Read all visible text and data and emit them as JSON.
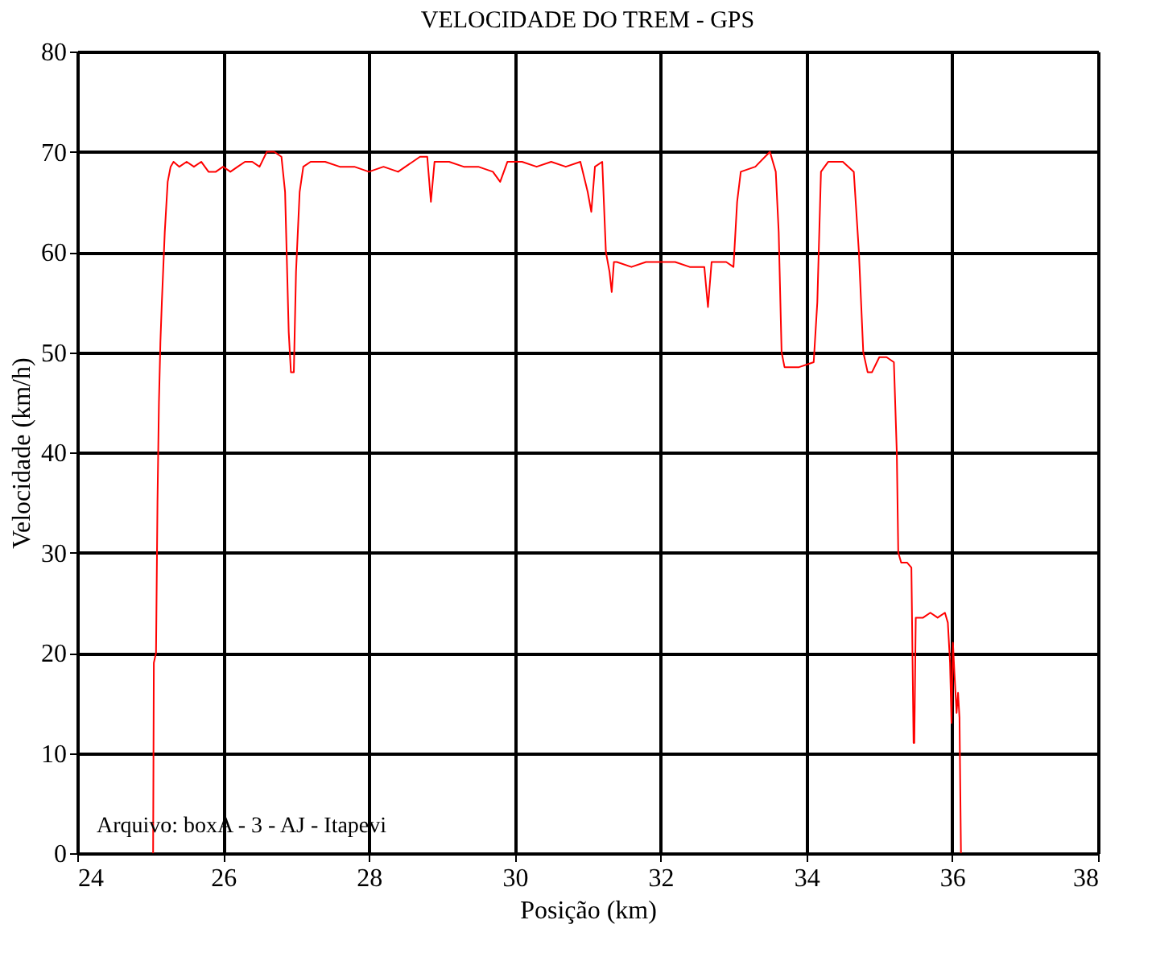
{
  "chart_data": {
    "type": "line",
    "title": "VELOCIDADE DO TREM - GPS",
    "xlabel": "Posição (km)",
    "ylabel": "Velocidade (km/h)",
    "xlim": [
      24,
      38
    ],
    "ylim": [
      0,
      80
    ],
    "xticks": [
      24,
      26,
      28,
      30,
      32,
      34,
      36,
      38
    ],
    "yticks": [
      0,
      10,
      20,
      30,
      40,
      50,
      60,
      70,
      80
    ],
    "grid": true,
    "line_style": "solid",
    "marker": "none",
    "annotations": [
      "Arquivo: boxA - 3 - AJ - Itapevi"
    ],
    "series": [
      {
        "color": "#ff0000",
        "x": [
          25.04,
          25.05,
          25.08,
          25.1,
          25.12,
          25.14,
          25.16,
          25.2,
          25.24,
          25.28,
          25.32,
          25.4,
          25.5,
          25.6,
          25.7,
          25.8,
          25.9,
          26.0,
          26.1,
          26.2,
          26.3,
          26.4,
          26.5,
          26.6,
          26.7,
          26.8,
          26.85,
          26.9,
          26.93,
          26.97,
          27.0,
          27.05,
          27.1,
          27.2,
          27.4,
          27.6,
          27.8,
          28.0,
          28.2,
          28.4,
          28.6,
          28.7,
          28.8,
          28.85,
          28.9,
          29.1,
          29.3,
          29.5,
          29.7,
          29.8,
          29.9,
          30.1,
          30.3,
          30.5,
          30.7,
          30.9,
          31.0,
          31.05,
          31.1,
          31.2,
          31.25,
          31.3,
          31.33,
          31.36,
          31.4,
          31.6,
          31.8,
          32.0,
          32.2,
          32.4,
          32.6,
          32.65,
          32.7,
          32.9,
          33.0,
          33.05,
          33.1,
          33.3,
          33.5,
          33.58,
          33.62,
          33.66,
          33.7,
          33.9,
          34.1,
          34.15,
          34.2,
          34.3,
          34.5,
          34.65,
          34.72,
          34.78,
          34.84,
          34.9,
          35.0,
          35.1,
          35.2,
          35.24,
          35.26,
          35.3,
          35.38,
          35.44,
          35.47,
          35.48,
          35.5,
          35.6,
          35.7,
          35.8,
          35.9,
          35.94,
          35.97,
          35.99,
          36.01,
          36.03,
          36.06,
          36.08,
          36.1,
          36.12
        ],
        "values": [
          0,
          19,
          20,
          35,
          45,
          51,
          55,
          62,
          67,
          68.5,
          69,
          68.5,
          69,
          68.5,
          69,
          68,
          68,
          68.5,
          68,
          68.5,
          69,
          69,
          68.5,
          70,
          70,
          69.5,
          66,
          52,
          48,
          48,
          58,
          66,
          68.5,
          69,
          69,
          68.5,
          68.5,
          68,
          68.5,
          68,
          69,
          69.5,
          69.5,
          65,
          69,
          69,
          68.5,
          68.5,
          68,
          67,
          69,
          69,
          68.5,
          69,
          68.5,
          69,
          66,
          64,
          68.5,
          69,
          60,
          58,
          56,
          59,
          59,
          58.5,
          59,
          59,
          59,
          58.5,
          58.5,
          54.5,
          59,
          59,
          58.5,
          65,
          68,
          68.5,
          70,
          68,
          62,
          50,
          48.5,
          48.5,
          49,
          55,
          68,
          69,
          69,
          68,
          60,
          50,
          48,
          48,
          49.5,
          49.5,
          49,
          40,
          30,
          29,
          29,
          28.5,
          11,
          11,
          23.5,
          23.5,
          24,
          23.5,
          24,
          23,
          19,
          13,
          21,
          18,
          14,
          16,
          13.5,
          0
        ]
      }
    ]
  }
}
